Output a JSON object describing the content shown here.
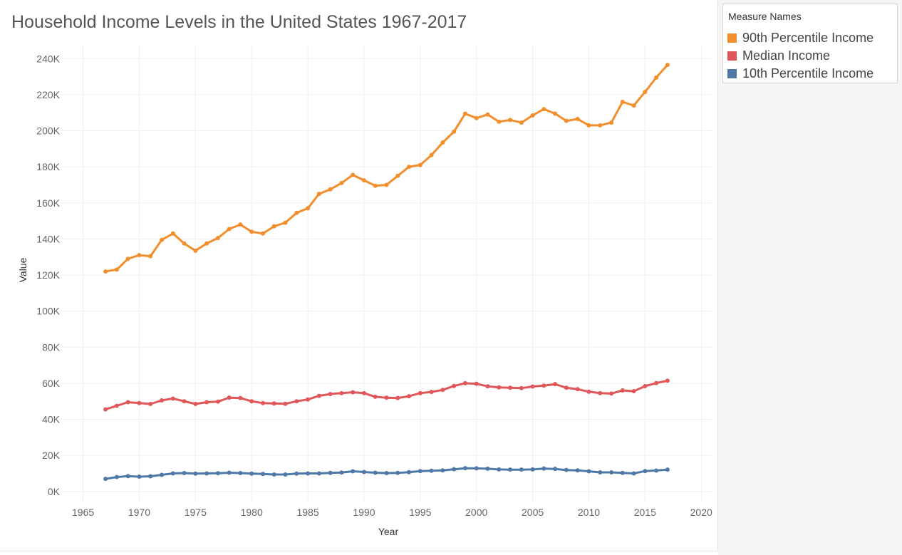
{
  "chart_data": {
    "type": "line",
    "title": "Household Income Levels in the United States 1967-2017",
    "xlabel": "Year",
    "ylabel": "Value",
    "xlim": [
      1963,
      2021
    ],
    "ylim": [
      -6000,
      248000
    ],
    "x_ticks": [
      1965,
      1970,
      1975,
      1980,
      1985,
      1990,
      1995,
      2000,
      2005,
      2010,
      2015,
      2020
    ],
    "y_ticks": [
      {
        "value": 0,
        "label": "0K"
      },
      {
        "value": 20000,
        "label": "20K"
      },
      {
        "value": 40000,
        "label": "40K"
      },
      {
        "value": 60000,
        "label": "60K"
      },
      {
        "value": 80000,
        "label": "80K"
      },
      {
        "value": 100000,
        "label": "100K"
      },
      {
        "value": 120000,
        "label": "120K"
      },
      {
        "value": 140000,
        "label": "140K"
      },
      {
        "value": 160000,
        "label": "160K"
      },
      {
        "value": 180000,
        "label": "180K"
      },
      {
        "value": 200000,
        "label": "200K"
      },
      {
        "value": 220000,
        "label": "220K"
      },
      {
        "value": 240000,
        "label": "240K"
      }
    ],
    "grid": true,
    "legend_position": "top-right",
    "x": [
      1967,
      1968,
      1969,
      1970,
      1971,
      1972,
      1973,
      1974,
      1975,
      1976,
      1977,
      1978,
      1979,
      1980,
      1981,
      1982,
      1983,
      1984,
      1985,
      1986,
      1987,
      1988,
      1989,
      1990,
      1991,
      1992,
      1993,
      1994,
      1995,
      1996,
      1997,
      1998,
      1999,
      2000,
      2001,
      2002,
      2003,
      2004,
      2005,
      2006,
      2007,
      2008,
      2009,
      2010,
      2011,
      2012,
      2013,
      2014,
      2015,
      2016,
      2017
    ],
    "series": [
      {
        "name": "90th Percentile Income",
        "color": "#f28e2b",
        "values": [
          122000,
          123000,
          129000,
          131000,
          130500,
          139500,
          143000,
          137500,
          133500,
          137500,
          140500,
          145500,
          148000,
          144000,
          143000,
          147000,
          149000,
          154500,
          157000,
          165000,
          167500,
          171000,
          175500,
          172500,
          169500,
          170000,
          175000,
          180000,
          181000,
          186500,
          193500,
          199500,
          209500,
          207000,
          209000,
          205000,
          206000,
          204500,
          208500,
          212000,
          209500,
          205500,
          206500,
          203000,
          203000,
          204500,
          216000,
          214000,
          221500,
          229500,
          236500
        ]
      },
      {
        "name": "Median Income",
        "color": "#e15759",
        "values": [
          45500,
          47500,
          49500,
          49000,
          48500,
          50500,
          51500,
          50000,
          48500,
          49500,
          49800,
          52000,
          51800,
          50000,
          49000,
          48800,
          48600,
          50000,
          51000,
          53000,
          54000,
          54500,
          55000,
          54500,
          52500,
          52000,
          51800,
          52800,
          54500,
          55200,
          56300,
          58500,
          60000,
          59700,
          58300,
          57700,
          57500,
          57300,
          58200,
          58700,
          59500,
          57500,
          56700,
          55300,
          54500,
          54300,
          56000,
          55600,
          58400,
          60100,
          61400
        ]
      },
      {
        "name": "10th Percentile Income",
        "color": "#4e79a7",
        "values": [
          7000,
          8000,
          8500,
          8200,
          8400,
          9200,
          10000,
          10200,
          9900,
          10000,
          10100,
          10400,
          10200,
          9900,
          9700,
          9400,
          9400,
          9900,
          10000,
          10000,
          10300,
          10500,
          11200,
          10800,
          10400,
          10200,
          10300,
          10700,
          11300,
          11500,
          11700,
          12300,
          12900,
          12800,
          12600,
          12200,
          12100,
          12100,
          12200,
          12700,
          12500,
          11900,
          11700,
          11200,
          10600,
          10600,
          10300,
          10000,
          11300,
          11600,
          12100
        ]
      }
    ]
  },
  "legend": {
    "title": "Measure Names"
  }
}
